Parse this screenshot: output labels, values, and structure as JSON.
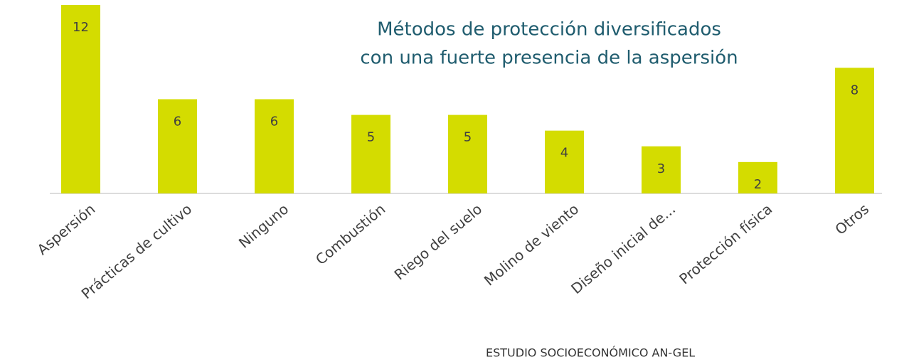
{
  "chart_data": {
    "type": "bar",
    "title": [
      "Métodos de protección diversificados",
      "con una fuerte presencia de la aspersión"
    ],
    "categories": [
      "Aspersión",
      "Prácticas de cultivo",
      "Ninguno",
      "Combustión",
      "Riego del suelo",
      "Molino de viento",
      "Diseño inicial de...",
      "Protección física",
      "Otros"
    ],
    "values": [
      12,
      6,
      6,
      5,
      5,
      4,
      3,
      2,
      8
    ],
    "color": "#d4dc00",
    "ylim": [
      0,
      12
    ],
    "source": "ESTUDIO SOCIOECONÓMICO AN-GEL"
  }
}
